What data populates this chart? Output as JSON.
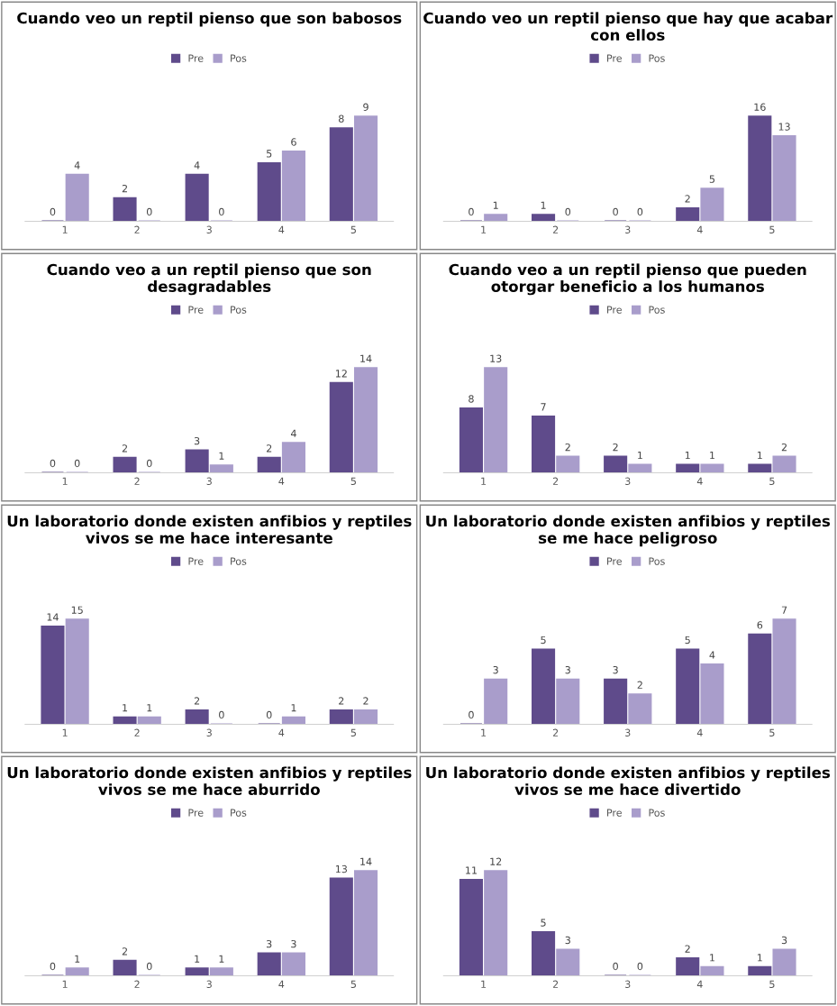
{
  "chart_data": [
    {
      "type": "bar",
      "title": "Cuando veo un reptil pienso que son babosos",
      "categories": [
        "1",
        "2",
        "3",
        "4",
        "5"
      ],
      "series": [
        {
          "name": "Pre",
          "color": "#5f4b8b",
          "values": [
            0,
            2,
            4,
            5,
            8
          ]
        },
        {
          "name": "Pos",
          "color": "#a99dcb",
          "values": [
            4,
            0,
            0,
            6,
            9
          ]
        }
      ],
      "data_labels": true,
      "legend": "top"
    },
    {
      "type": "bar",
      "title": "Cuando veo un reptil pienso que hay que acabar con ellos",
      "categories": [
        "1",
        "2",
        "3",
        "4",
        "5"
      ],
      "series": [
        {
          "name": "Pre",
          "color": "#5f4b8b",
          "values": [
            0,
            1,
            0,
            2,
            16
          ]
        },
        {
          "name": "Pos",
          "color": "#a99dcb",
          "values": [
            1,
            0,
            0,
            5,
            13
          ]
        }
      ],
      "data_labels": true,
      "legend": "top"
    },
    {
      "type": "bar",
      "title": "Cuando veo a un reptil pienso que son desagradables",
      "categories": [
        "1",
        "2",
        "3",
        "4",
        "5"
      ],
      "series": [
        {
          "name": "Pre",
          "color": "#5f4b8b",
          "values": [
            0,
            2,
            3,
            2,
            12
          ]
        },
        {
          "name": "Pos",
          "color": "#a99dcb",
          "values": [
            0,
            0,
            1,
            4,
            14
          ]
        }
      ],
      "data_labels": true,
      "legend": "top"
    },
    {
      "type": "bar",
      "title": "Cuando veo a un reptil pienso que pueden otorgar beneficio a los humanos",
      "categories": [
        "1",
        "2",
        "3",
        "4",
        "5"
      ],
      "series": [
        {
          "name": "Pre",
          "color": "#5f4b8b",
          "values": [
            8,
            7,
            2,
            1,
            1
          ]
        },
        {
          "name": "Pos",
          "color": "#a99dcb",
          "values": [
            13,
            2,
            1,
            1,
            2
          ]
        }
      ],
      "data_labels": true,
      "legend": "top"
    },
    {
      "type": "bar",
      "title": "Un laboratorio donde existen anfibios y reptiles vivos se me hace interesante",
      "categories": [
        "1",
        "2",
        "3",
        "4",
        "5"
      ],
      "series": [
        {
          "name": "Pre",
          "color": "#5f4b8b",
          "values": [
            14,
            1,
            2,
            0,
            2
          ]
        },
        {
          "name": "Pos",
          "color": "#a99dcb",
          "values": [
            15,
            1,
            0,
            1,
            2
          ]
        }
      ],
      "data_labels": true,
      "legend": "top"
    },
    {
      "type": "bar",
      "title": "Un laboratorio donde existen anfibios y reptiles se me hace peligroso",
      "categories": [
        "1",
        "2",
        "3",
        "4",
        "5"
      ],
      "series": [
        {
          "name": "Pre",
          "color": "#5f4b8b",
          "values": [
            0,
            5,
            3,
            5,
            6
          ]
        },
        {
          "name": "Pos",
          "color": "#a99dcb",
          "values": [
            3,
            3,
            2,
            4,
            7
          ]
        }
      ],
      "data_labels": true,
      "legend": "top"
    },
    {
      "type": "bar",
      "title": "Un laboratorio donde existen anfibios y reptiles vivos se me hace aburrido",
      "categories": [
        "1",
        "2",
        "3",
        "4",
        "5"
      ],
      "series": [
        {
          "name": "Pre",
          "color": "#5f4b8b",
          "values": [
            0,
            2,
            1,
            3,
            13
          ]
        },
        {
          "name": "Pos",
          "color": "#a99dcb",
          "values": [
            1,
            0,
            1,
            3,
            14
          ]
        }
      ],
      "data_labels": true,
      "legend": "top"
    },
    {
      "type": "bar",
      "title": "Un laboratorio donde existen anfibios y reptiles vivos se me hace divertido",
      "categories": [
        "1",
        "2",
        "3",
        "4",
        "5"
      ],
      "series": [
        {
          "name": "Pre",
          "color": "#5f4b8b",
          "values": [
            11,
            5,
            0,
            2,
            1
          ]
        },
        {
          "name": "Pos",
          "color": "#a99dcb",
          "values": [
            12,
            3,
            0,
            1,
            3
          ]
        }
      ],
      "data_labels": true,
      "legend": "top"
    }
  ]
}
